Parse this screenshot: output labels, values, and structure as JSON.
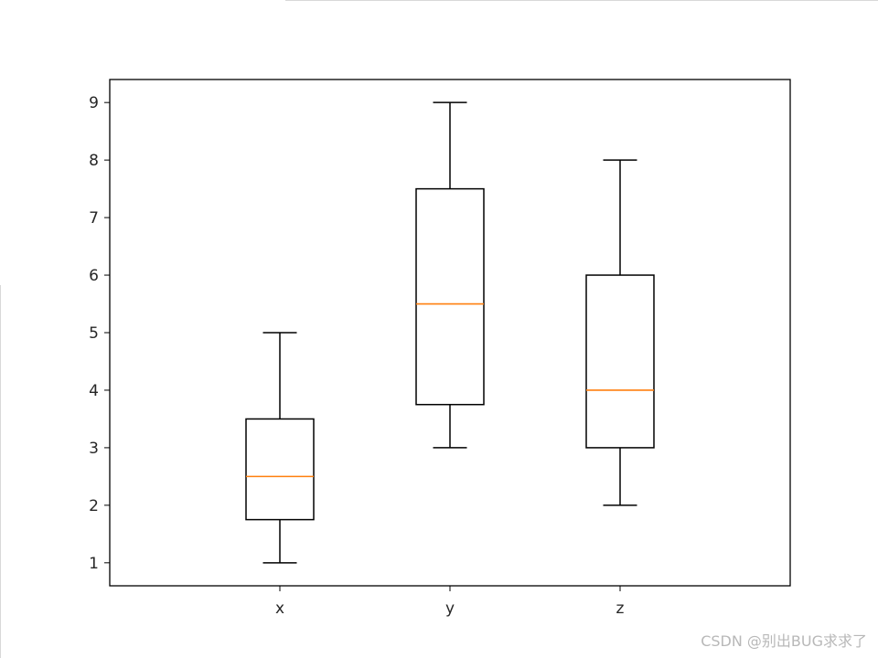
{
  "chart_data": {
    "type": "boxplot",
    "categories": [
      "x",
      "y",
      "z"
    ],
    "boxes": [
      {
        "label": "x",
        "whislo": 1,
        "q1": 1.75,
        "med": 2.5,
        "q3": 3.5,
        "whishi": 5
      },
      {
        "label": "y",
        "whislo": 3,
        "q1": 3.75,
        "med": 5.5,
        "q3": 7.5,
        "whishi": 9
      },
      {
        "label": "z",
        "whislo": 2,
        "q1": 3,
        "med": 4,
        "q3": 6,
        "whishi": 8
      }
    ],
    "yticks": [
      1,
      2,
      3,
      4,
      5,
      6,
      7,
      8,
      9
    ],
    "ylim": [
      0.6,
      9.4
    ],
    "title": "",
    "xlabel": "",
    "ylabel": "",
    "grid": false,
    "colors": {
      "box": "#000000",
      "median": "#ff7f0e",
      "frame": "#000000",
      "text": "#262626"
    }
  },
  "watermark": "CSDN @别出BUG求求了"
}
